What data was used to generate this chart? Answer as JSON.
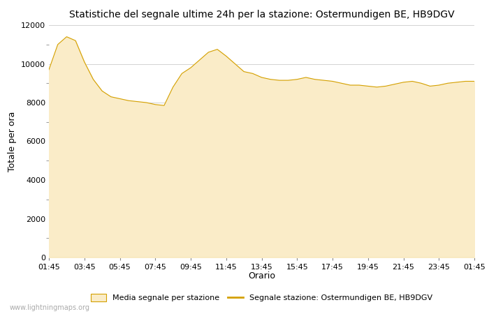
{
  "title": "Statistiche del segnale ultime 24h per la stazione: Ostermundigen BE, HB9DGV",
  "xlabel": "Orario",
  "ylabel": "Totale per ora",
  "xlim_labels": [
    "01:45",
    "03:45",
    "05:45",
    "07:45",
    "09:45",
    "11:45",
    "13:45",
    "15:45",
    "17:45",
    "19:45",
    "21:45",
    "23:45",
    "01:45"
  ],
  "ylim": [
    0,
    12000
  ],
  "yticks": [
    0,
    2000,
    4000,
    6000,
    8000,
    10000,
    12000
  ],
  "fill_color": "#faecc8",
  "line_color": "#d4a000",
  "background_color": "#ffffff",
  "grid_color": "#cccccc",
  "watermark": "www.lightningmaps.org",
  "legend_area_label": "Media segnale per stazione",
  "legend_line_label": "Segnale stazione: Ostermundigen BE, HB9DGV",
  "x_values": [
    0,
    1,
    2,
    3,
    4,
    5,
    6,
    7,
    8,
    9,
    10,
    11,
    12,
    13,
    14,
    15,
    16,
    17,
    18,
    19,
    20,
    21,
    22,
    23,
    24,
    25,
    26,
    27,
    28,
    29,
    30,
    31,
    32,
    33,
    34,
    35,
    36,
    37,
    38,
    39,
    40,
    41,
    42,
    43,
    44,
    45,
    46,
    47,
    48
  ],
  "y_values": [
    9700,
    11000,
    11400,
    11200,
    10100,
    9200,
    8600,
    8300,
    8200,
    8100,
    8050,
    8000,
    7900,
    7850,
    8800,
    9500,
    9800,
    10200,
    10600,
    10750,
    10400,
    10000,
    9600,
    9500,
    9300,
    9200,
    9150,
    9150,
    9200,
    9300,
    9200,
    9150,
    9100,
    9000,
    8900,
    8900,
    8850,
    8800,
    8850,
    8950,
    9050,
    9100,
    9000,
    8850,
    8900,
    9000,
    9050,
    9100,
    9100
  ]
}
